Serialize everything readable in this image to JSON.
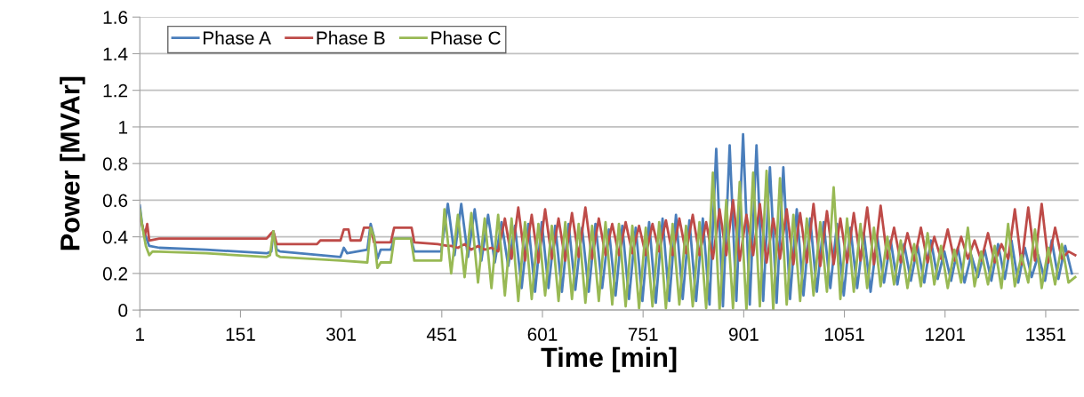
{
  "chart_data": {
    "type": "line",
    "xlabel": "Time [min]",
    "ylabel": "Power [MVAr]",
    "xlim": [
      1,
      1400
    ],
    "xticks": [
      1,
      151,
      301,
      451,
      601,
      751,
      901,
      1051,
      1201,
      1351
    ],
    "ylim": [
      0,
      1.6
    ],
    "yticks": [
      0,
      0.2,
      0.4,
      0.6,
      0.8,
      1,
      1.2,
      1.4,
      1.6
    ],
    "grid": "y",
    "legend": "top left",
    "marker": "none",
    "line_style": "solid",
    "series": [
      {
        "name": "Phase A",
        "color": "#4a7ebb",
        "x": [
          1,
          5,
          10,
          15,
          30,
          100,
          190,
          197,
          200,
          205,
          210,
          300,
          305,
          310,
          340,
          345,
          350,
          355,
          360,
          375,
          380,
          405,
          410,
          450,
          460,
          470,
          480,
          490,
          500,
          510,
          520,
          530,
          540,
          550,
          560,
          570,
          580,
          590,
          600,
          610,
          620,
          630,
          640,
          650,
          660,
          670,
          680,
          690,
          700,
          710,
          720,
          730,
          740,
          750,
          760,
          770,
          780,
          790,
          800,
          810,
          820,
          830,
          840,
          850,
          860,
          870,
          880,
          890,
          900,
          910,
          920,
          930,
          940,
          950,
          960,
          970,
          980,
          990,
          1000,
          1010,
          1020,
          1030,
          1040,
          1050,
          1060,
          1070,
          1080,
          1090,
          1100,
          1110,
          1120,
          1130,
          1140,
          1150,
          1160,
          1170,
          1180,
          1190,
          1200,
          1210,
          1220,
          1230,
          1240,
          1250,
          1260,
          1270,
          1280,
          1290,
          1300,
          1310,
          1320,
          1330,
          1340,
          1350,
          1360,
          1370,
          1380,
          1390
        ],
        "values": [
          0.57,
          0.45,
          0.4,
          0.35,
          0.34,
          0.33,
          0.31,
          0.32,
          0.43,
          0.33,
          0.32,
          0.29,
          0.34,
          0.31,
          0.33,
          0.47,
          0.4,
          0.28,
          0.33,
          0.33,
          0.39,
          0.39,
          0.32,
          0.32,
          0.58,
          0.3,
          0.58,
          0.29,
          0.55,
          0.27,
          0.52,
          0.26,
          0.48,
          0.24,
          0.46,
          0.12,
          0.47,
          0.1,
          0.48,
          0.12,
          0.46,
          0.1,
          0.47,
          0.11,
          0.45,
          0.1,
          0.47,
          0.12,
          0.44,
          0.08,
          0.46,
          0.06,
          0.45,
          0.05,
          0.48,
          0.04,
          0.5,
          0.05,
          0.52,
          0.06,
          0.49,
          0.05,
          0.5,
          0.03,
          0.88,
          0.02,
          0.9,
          0.05,
          0.96,
          0.03,
          0.9,
          0.05,
          0.78,
          0.04,
          0.78,
          0.06,
          0.55,
          0.08,
          0.5,
          0.1,
          0.48,
          0.12,
          0.47,
          0.08,
          0.45,
          0.12,
          0.42,
          0.1,
          0.4,
          0.15,
          0.38,
          0.14,
          0.36,
          0.16,
          0.35,
          0.15,
          0.38,
          0.17,
          0.32,
          0.16,
          0.34,
          0.15,
          0.3,
          0.18,
          0.33,
          0.16,
          0.36,
          0.17,
          0.38,
          0.15,
          0.34,
          0.18,
          0.3,
          0.16,
          0.38,
          0.17,
          0.35,
          0.2
        ]
      },
      {
        "name": "Phase B",
        "color": "#be4b48",
        "x": [
          1,
          5,
          8,
          12,
          15,
          30,
          190,
          197,
          200,
          205,
          265,
          270,
          300,
          305,
          312,
          315,
          330,
          335,
          345,
          350,
          375,
          380,
          406,
          410,
          445,
          460,
          465,
          475,
          485,
          495,
          505,
          515,
          525,
          535,
          545,
          555,
          565,
          575,
          585,
          595,
          605,
          615,
          625,
          635,
          645,
          655,
          665,
          675,
          685,
          695,
          705,
          715,
          725,
          735,
          745,
          755,
          765,
          775,
          785,
          795,
          805,
          815,
          825,
          835,
          845,
          855,
          865,
          875,
          885,
          895,
          905,
          915,
          925,
          935,
          945,
          955,
          965,
          975,
          985,
          995,
          1005,
          1015,
          1025,
          1035,
          1045,
          1055,
          1065,
          1075,
          1085,
          1095,
          1105,
          1115,
          1125,
          1135,
          1145,
          1155,
          1165,
          1175,
          1185,
          1195,
          1205,
          1215,
          1225,
          1235,
          1245,
          1255,
          1265,
          1275,
          1285,
          1295,
          1305,
          1315,
          1325,
          1335,
          1345,
          1355,
          1365,
          1375,
          1385,
          1395
        ],
        "values": [
          0.5,
          0.46,
          0.4,
          0.47,
          0.38,
          0.39,
          0.39,
          0.42,
          0.43,
          0.36,
          0.36,
          0.38,
          0.38,
          0.44,
          0.44,
          0.38,
          0.38,
          0.45,
          0.45,
          0.37,
          0.37,
          0.45,
          0.45,
          0.37,
          0.36,
          0.35,
          0.35,
          0.34,
          0.36,
          0.33,
          0.35,
          0.33,
          0.34,
          0.32,
          0.5,
          0.28,
          0.56,
          0.27,
          0.52,
          0.26,
          0.55,
          0.28,
          0.5,
          0.27,
          0.53,
          0.29,
          0.56,
          0.28,
          0.5,
          0.3,
          0.47,
          0.3,
          0.48,
          0.31,
          0.46,
          0.3,
          0.47,
          0.32,
          0.49,
          0.3,
          0.5,
          0.31,
          0.52,
          0.3,
          0.48,
          0.28,
          0.55,
          0.3,
          0.6,
          0.27,
          0.52,
          0.3,
          0.58,
          0.26,
          0.5,
          0.28,
          0.55,
          0.25,
          0.53,
          0.26,
          0.58,
          0.24,
          0.54,
          0.25,
          0.5,
          0.26,
          0.53,
          0.27,
          0.56,
          0.25,
          0.57,
          0.28,
          0.45,
          0.26,
          0.42,
          0.27,
          0.45,
          0.26,
          0.4,
          0.28,
          0.44,
          0.27,
          0.4,
          0.28,
          0.38,
          0.27,
          0.42,
          0.26,
          0.36,
          0.28,
          0.55,
          0.25,
          0.56,
          0.27,
          0.58,
          0.26,
          0.45,
          0.28,
          0.32,
          0.3
        ]
      },
      {
        "name": "Phase C",
        "color": "#98b954",
        "x": [
          1,
          5,
          10,
          15,
          20,
          100,
          190,
          195,
          200,
          205,
          210,
          300,
          340,
          345,
          350,
          355,
          360,
          375,
          380,
          405,
          410,
          450,
          455,
          465,
          475,
          485,
          495,
          505,
          515,
          525,
          535,
          545,
          555,
          565,
          575,
          585,
          595,
          605,
          615,
          625,
          635,
          645,
          655,
          665,
          675,
          685,
          695,
          705,
          715,
          725,
          735,
          745,
          755,
          765,
          775,
          785,
          795,
          805,
          815,
          825,
          835,
          845,
          855,
          865,
          875,
          885,
          895,
          905,
          915,
          925,
          935,
          945,
          955,
          965,
          975,
          985,
          995,
          1005,
          1015,
          1025,
          1035,
          1045,
          1055,
          1065,
          1075,
          1085,
          1095,
          1105,
          1115,
          1125,
          1135,
          1145,
          1155,
          1165,
          1175,
          1185,
          1195,
          1205,
          1215,
          1225,
          1235,
          1245,
          1255,
          1265,
          1275,
          1285,
          1295,
          1305,
          1315,
          1325,
          1335,
          1345,
          1355,
          1365,
          1375,
          1385,
          1395
        ],
        "values": [
          0.55,
          0.45,
          0.35,
          0.3,
          0.32,
          0.31,
          0.29,
          0.3,
          0.43,
          0.3,
          0.29,
          0.27,
          0.26,
          0.45,
          0.4,
          0.23,
          0.26,
          0.26,
          0.39,
          0.39,
          0.27,
          0.27,
          0.55,
          0.2,
          0.52,
          0.18,
          0.53,
          0.15,
          0.5,
          0.12,
          0.52,
          0.08,
          0.5,
          0.05,
          0.48,
          0.06,
          0.47,
          0.08,
          0.46,
          0.05,
          0.48,
          0.06,
          0.47,
          0.04,
          0.46,
          0.05,
          0.48,
          0.03,
          0.47,
          0.02,
          0.46,
          0.01,
          0.45,
          0.02,
          0.48,
          0.01,
          0.47,
          0.03,
          0.46,
          0.02,
          0.48,
          0.01,
          0.75,
          0.0,
          0.6,
          0.01,
          0.7,
          0.0,
          0.75,
          0.02,
          0.76,
          0.0,
          0.72,
          0.03,
          0.52,
          0.05,
          0.5,
          0.08,
          0.48,
          0.1,
          0.67,
          0.06,
          0.5,
          0.1,
          0.47,
          0.12,
          0.45,
          0.13,
          0.4,
          0.14,
          0.38,
          0.12,
          0.36,
          0.13,
          0.42,
          0.14,
          0.35,
          0.12,
          0.33,
          0.15,
          0.45,
          0.13,
          0.32,
          0.14,
          0.35,
          0.12,
          0.47,
          0.13,
          0.3,
          0.15,
          0.44,
          0.12,
          0.34,
          0.14,
          0.36,
          0.15,
          0.18
        ]
      }
    ]
  }
}
